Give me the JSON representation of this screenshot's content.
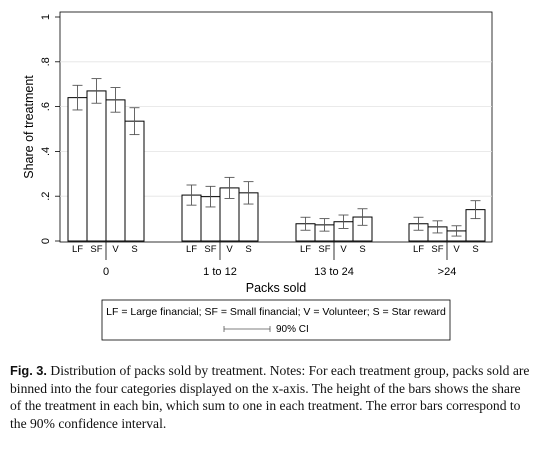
{
  "chart_data": {
    "type": "bar",
    "ylabel": "Share of treatment",
    "xlabel": "Packs sold",
    "ylim": [
      0,
      1
    ],
    "yticks": [
      0,
      0.2,
      0.4,
      0.6,
      0.8,
      1
    ],
    "ytick_labels": [
      "0",
      ".2",
      ".4",
      ".6",
      ".8",
      "1"
    ],
    "grid": true,
    "series_labels": [
      "LF",
      "SF",
      "V",
      "S"
    ],
    "groups": [
      {
        "label": "0",
        "values": [
          0.64,
          0.67,
          0.63,
          0.535
        ],
        "ci_low": [
          0.585,
          0.615,
          0.575,
          0.475
        ],
        "ci_high": [
          0.695,
          0.725,
          0.685,
          0.595
        ]
      },
      {
        "label": "1 to 12",
        "values": [
          0.205,
          0.198,
          0.237,
          0.215
        ],
        "ci_low": [
          0.16,
          0.152,
          0.19,
          0.165
        ],
        "ci_high": [
          0.25,
          0.244,
          0.284,
          0.265
        ]
      },
      {
        "label": "13 to 24",
        "values": [
          0.077,
          0.072,
          0.086,
          0.107
        ],
        "ci_low": [
          0.048,
          0.044,
          0.056,
          0.07
        ],
        "ci_high": [
          0.106,
          0.1,
          0.116,
          0.144
        ]
      },
      {
        "label": ">24",
        "values": [
          0.077,
          0.063,
          0.045,
          0.14
        ],
        "ci_low": [
          0.048,
          0.036,
          0.022,
          0.1
        ],
        "ci_high": [
          0.106,
          0.09,
          0.068,
          0.18
        ]
      }
    ],
    "legend_text": "LF = Large financial; SF = Small financial; V = Volunteer; S = Star reward",
    "legend_ci": "90% CI",
    "legend_position": "bottom"
  },
  "caption": {
    "lead": "Fig. 3.",
    "body": " Distribution of packs sold by treatment. Notes: For each treatment group, packs sold are binned into the four categories displayed on the x-axis. The height of the bars shows the share of the treatment in each bin, which sum to one in each treatment. The error bars correspond to the 90% confidence interval."
  }
}
